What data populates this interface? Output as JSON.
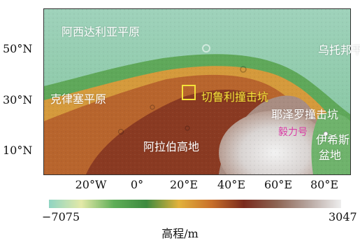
{
  "map": {
    "regions": {
      "arcadia": "阿西达利亚平原",
      "utopia": "乌托邦平原",
      "chryse": "克律塞平原",
      "cassini": "切鲁利撞击坑",
      "jezero": "耶泽罗撞击坑",
      "magenta": "毅力号",
      "arabia": "阿拉伯高地",
      "isidis_line1": "伊希斯",
      "isidis_line2": "盆地"
    },
    "y_ticks": [
      "50°N",
      "30°N",
      "10°N"
    ],
    "x_ticks": [
      "20°W",
      "0°",
      "20°E",
      "40°E",
      "60°E",
      "80°E"
    ]
  },
  "colorbar": {
    "min_label": "−7075",
    "max_label": "3047",
    "title": "高程/m",
    "colors": [
      "#8fd4c2",
      "#e3e9a8",
      "#5fae57",
      "#3d8a3f",
      "#e2b23c",
      "#c8702b",
      "#7a2a1c",
      "#8c6352",
      "#b7a6a0",
      "#eeeeee"
    ]
  }
}
